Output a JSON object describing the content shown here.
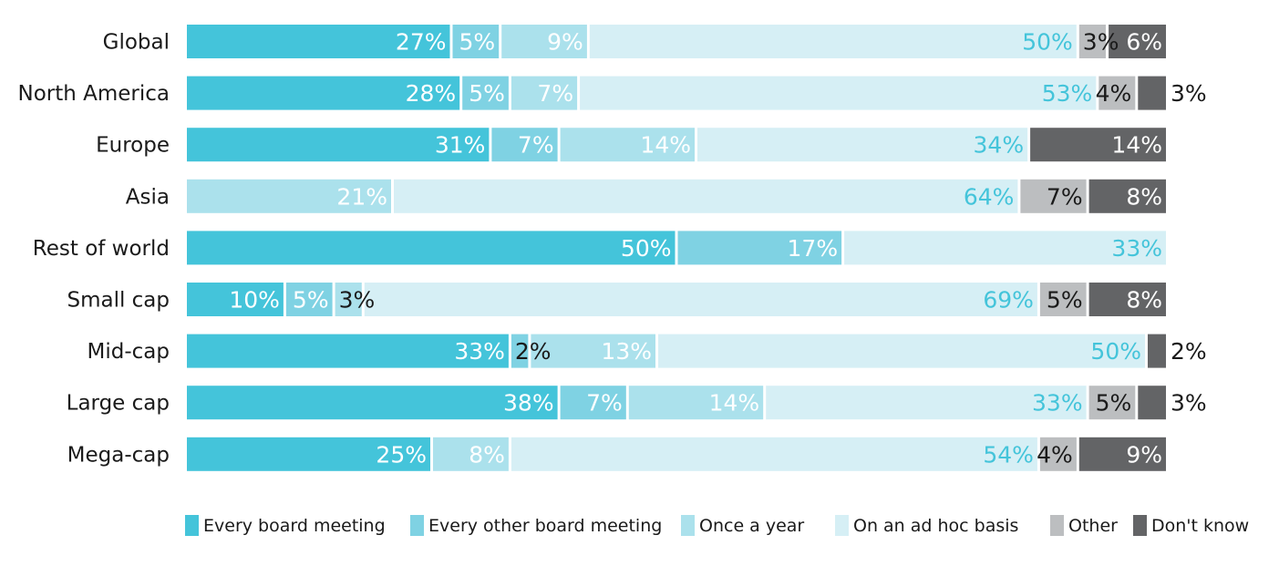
{
  "chart_data": {
    "type": "bar",
    "orientation": "horizontal",
    "stacked": true,
    "percent": true,
    "title": "",
    "xlabel": "",
    "ylabel": "",
    "xlim": [
      0,
      100
    ],
    "grid": false,
    "legend_position": "bottom",
    "categories": [
      "Global",
      "North America",
      "Europe",
      "Asia",
      "Rest of world",
      "Small cap",
      "Mid-cap",
      "Large cap",
      "Mega-cap"
    ],
    "series": [
      {
        "name": "Every board meeting",
        "color": "#44c4da",
        "label_color": "#ffffff",
        "values": [
          27,
          28,
          31,
          0,
          50,
          10,
          33,
          38,
          25
        ]
      },
      {
        "name": "Every other board meeting",
        "color": "#7fd2e3",
        "label_color": "#ffffff",
        "values": [
          5,
          5,
          7,
          0,
          17,
          5,
          2,
          7,
          0
        ]
      },
      {
        "name": "Once a year",
        "color": "#abe1ec",
        "label_color": "#ffffff",
        "values": [
          9,
          7,
          14,
          21,
          0,
          3,
          13,
          14,
          8
        ]
      },
      {
        "name": "On an ad hoc basis",
        "color": "#d6eff5",
        "label_color": "#44c4da",
        "values": [
          50,
          53,
          34,
          64,
          33,
          69,
          50,
          33,
          54
        ]
      },
      {
        "name": "Other",
        "color": "#bcbec0",
        "label_color": "#1a1a1a",
        "values": [
          3,
          4,
          0,
          7,
          0,
          5,
          0,
          5,
          4
        ]
      },
      {
        "name": "Don't know",
        "color": "#636466",
        "label_color": "#ffffff",
        "values": [
          6,
          3,
          14,
          8,
          0,
          8,
          2,
          3,
          9
        ]
      }
    ],
    "value_labels": [
      [
        "27%",
        "5%",
        "9%",
        "50%",
        "3%",
        "6%"
      ],
      [
        "28%",
        "5%",
        "7%",
        "53%",
        "4%",
        "3%"
      ],
      [
        "31%",
        "7%",
        "14%",
        "34%",
        "",
        "14%"
      ],
      [
        "",
        "",
        "21%",
        "64%",
        "7%",
        "8%"
      ],
      [
        "50%",
        "17%",
        "",
        "33%",
        "",
        ""
      ],
      [
        "10%",
        "5%",
        "3%",
        "69%",
        "5%",
        "8%"
      ],
      [
        "33%",
        "2%",
        "13%",
        "50%",
        "",
        "2%"
      ],
      [
        "38%",
        "7%",
        "14%",
        "33%",
        "5%",
        "3%"
      ],
      [
        "25%",
        "",
        "8%",
        "54%",
        "4%",
        "9%"
      ]
    ]
  }
}
